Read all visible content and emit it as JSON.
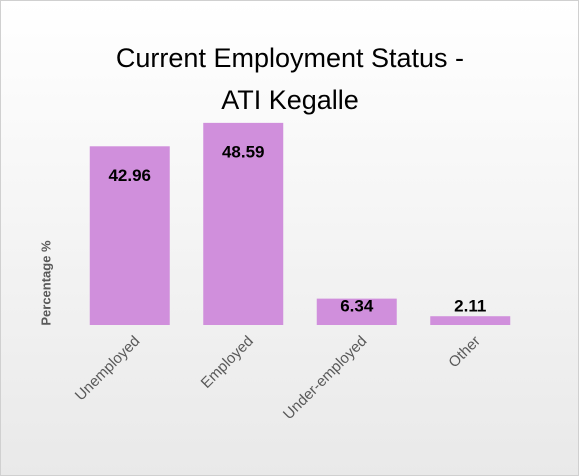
{
  "chart_data": {
    "type": "bar",
    "title": "Current Employment Status - ATI Kegalle",
    "y_label": "Percentage %",
    "categories": [
      "Unemployed",
      "Employed",
      "Under-employed",
      "Other"
    ],
    "values": [
      42.96,
      48.59,
      6.34,
      2.11
    ],
    "color": "#d08fdc",
    "ylim": [
      0,
      50
    ]
  }
}
